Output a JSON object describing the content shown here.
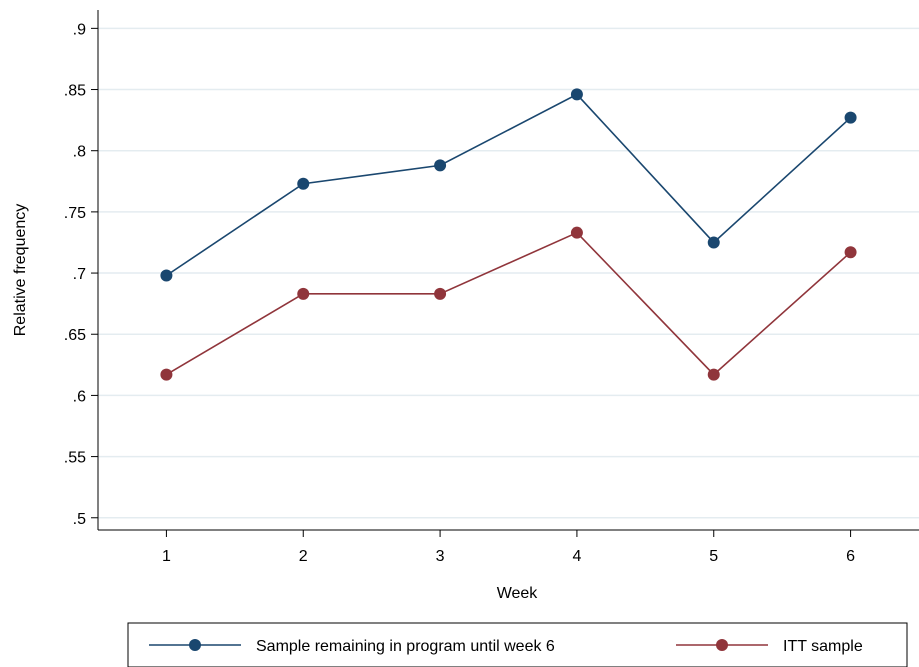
{
  "chart_data": {
    "type": "line",
    "title": "",
    "xlabel": "Week",
    "ylabel": "Relative frequency",
    "x": [
      1,
      2,
      3,
      4,
      5,
      6
    ],
    "x_tick_labels": [
      "1",
      "2",
      "3",
      "4",
      "5",
      "6"
    ],
    "y_ticks": [
      0.5,
      0.55,
      0.6,
      0.65,
      0.7,
      0.75,
      0.8,
      0.85,
      0.9
    ],
    "y_tick_labels": [
      ".5",
      ".55",
      ".6",
      ".65",
      ".7",
      ".75",
      ".8",
      ".85",
      ".9"
    ],
    "xlim": [
      0.5,
      6.5
    ],
    "ylim": [
      0.49,
      0.915
    ],
    "grid": true,
    "legend_position": "bottom",
    "series": [
      {
        "name": "Sample remaining in program until week 6",
        "color": "#1a476f",
        "values": [
          0.698,
          0.773,
          0.788,
          0.846,
          0.725,
          0.827
        ]
      },
      {
        "name": "ITT sample",
        "color": "#90353b",
        "values": [
          0.617,
          0.683,
          0.683,
          0.733,
          0.617,
          0.717
        ]
      }
    ]
  }
}
